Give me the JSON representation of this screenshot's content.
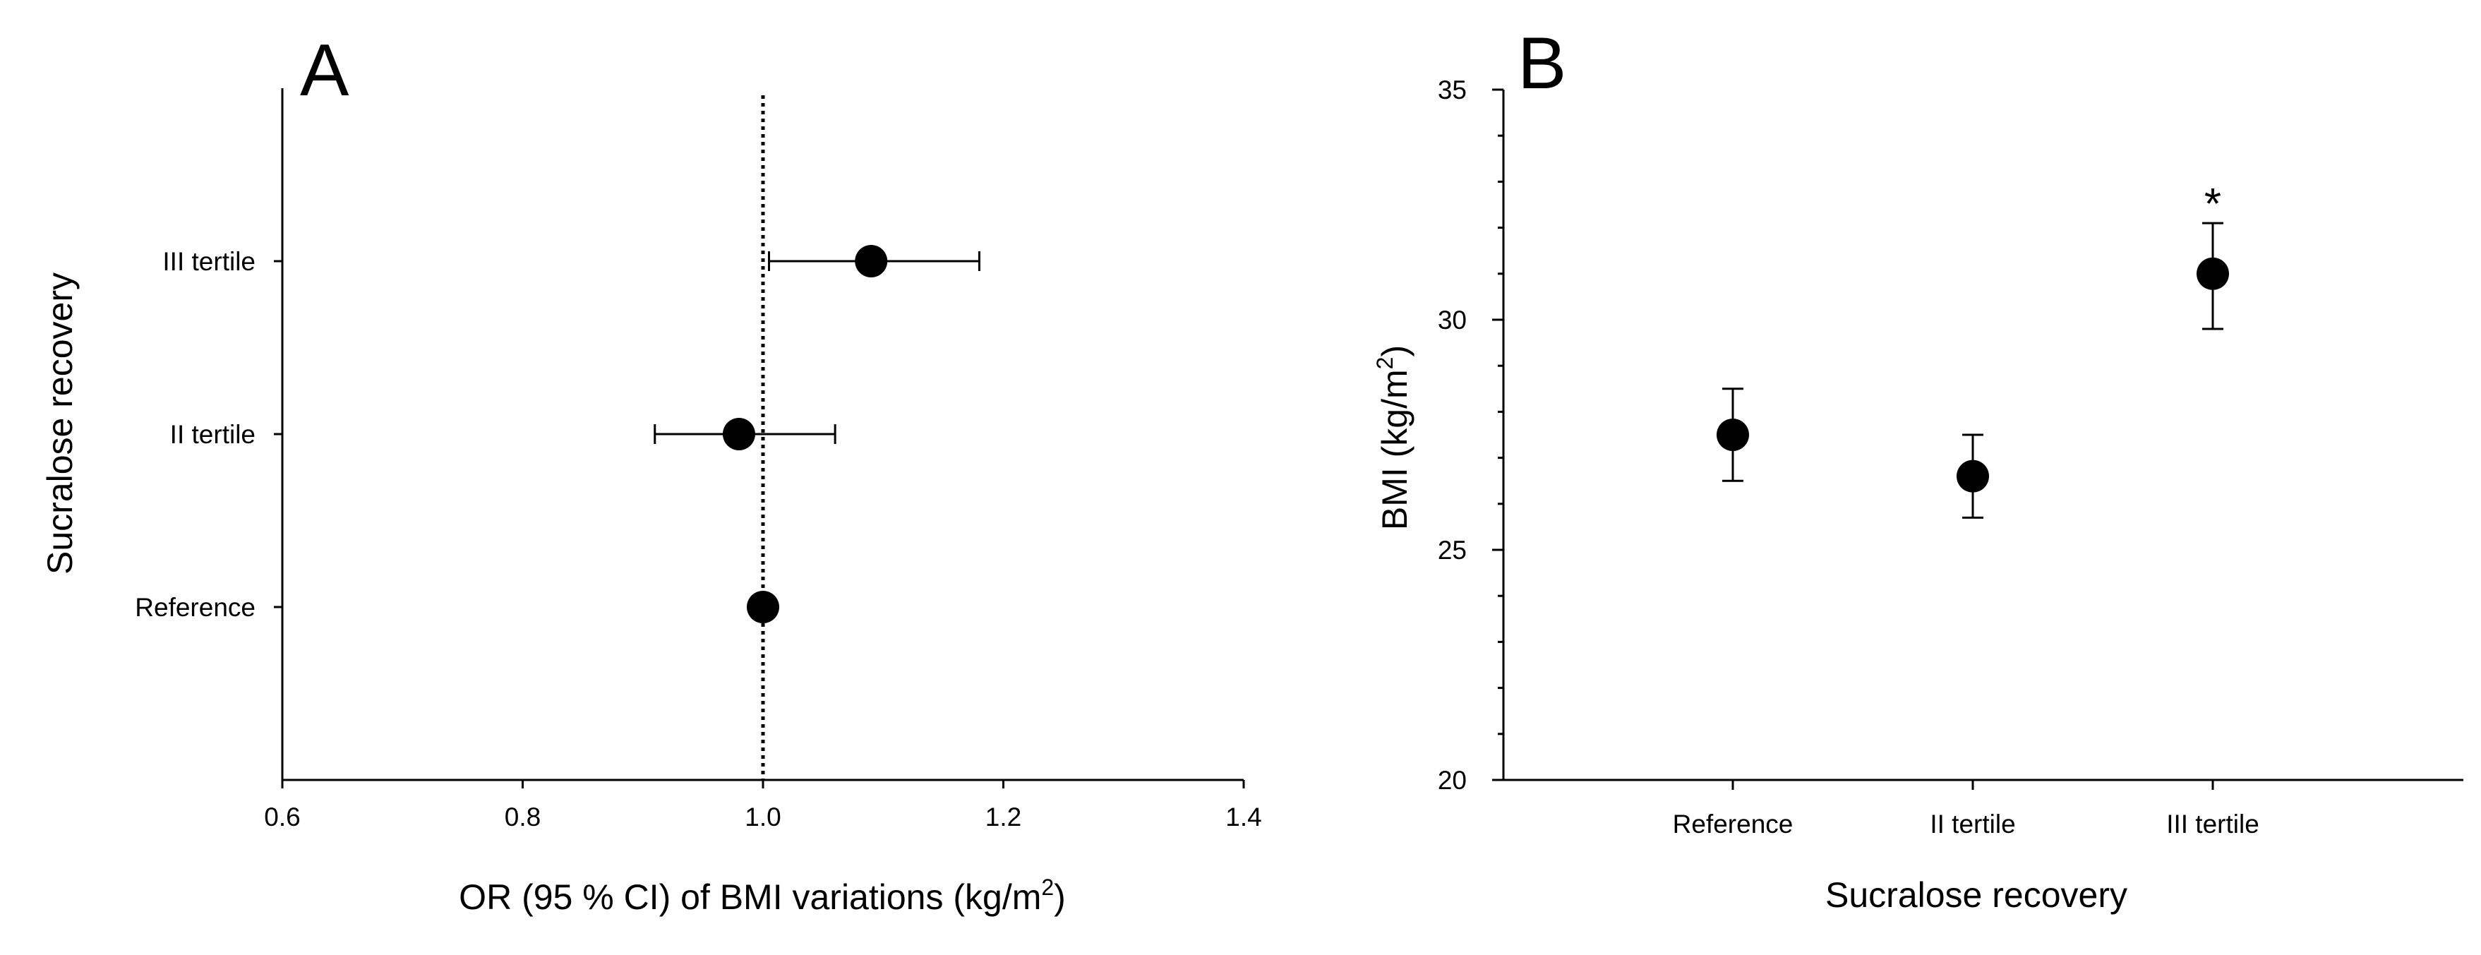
{
  "chart_data": [
    {
      "panel_label": "A",
      "type": "scatter",
      "orientation": "horizontal",
      "xlabel": "OR (95 % CI) of BMI variations (kg/m",
      "xlabel_sup": "2",
      "xlabel_suffix": ")",
      "ylabel": "Sucralose recovery",
      "xlim": [
        0.6,
        1.4
      ],
      "xticks": [
        "0.6",
        "0.8",
        "1.0",
        "1.2",
        "1.4"
      ],
      "reference_line": 1.0,
      "categories": [
        "Reference",
        "II tertile",
        "III tertile"
      ],
      "points": [
        {
          "category": "Reference",
          "value": 1.0,
          "ci_low": null,
          "ci_high": null
        },
        {
          "category": "II tertile",
          "value": 0.98,
          "ci_low": 0.91,
          "ci_high": 1.06
        },
        {
          "category": "III tertile",
          "value": 1.09,
          "ci_low": 1.005,
          "ci_high": 1.18
        }
      ]
    },
    {
      "panel_label": "B",
      "type": "scatter",
      "xlabel": "Sucralose recovery",
      "ylabel": "BMI (kg/m",
      "ylabel_sup": "2",
      "ylabel_suffix": ")",
      "ylim": [
        20,
        35
      ],
      "yticks": [
        "20",
        "25",
        "30",
        "35"
      ],
      "categories": [
        "Reference",
        "II tertile",
        "III tertile"
      ],
      "points": [
        {
          "category": "Reference",
          "value": 27.5,
          "err_low": 26.5,
          "err_high": 28.5,
          "annotation": ""
        },
        {
          "category": "II tertile",
          "value": 26.6,
          "err_low": 25.7,
          "err_high": 27.5,
          "annotation": ""
        },
        {
          "category": "III tertile",
          "value": 31.0,
          "err_low": 29.8,
          "err_high": 32.1,
          "annotation": "*"
        }
      ]
    }
  ]
}
